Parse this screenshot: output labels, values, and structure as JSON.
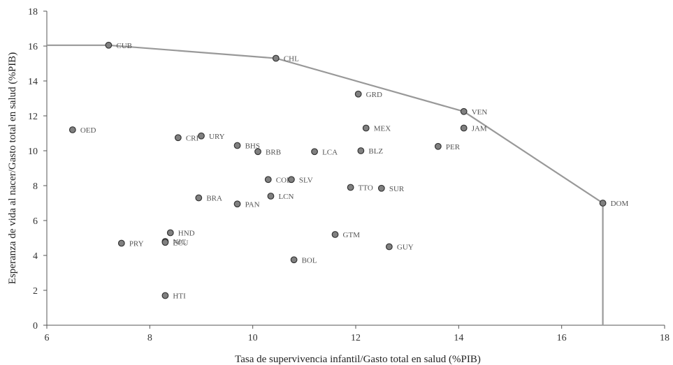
{
  "chart_data": {
    "type": "scatter",
    "title": "",
    "xlabel": "Tasa de supervivencia infantil/Gasto total en salud (%PIB)",
    "ylabel": "Esperanza de vida al nacer/Gasto total en salud (%PIB)",
    "xlim": [
      6,
      18
    ],
    "ylim": [
      0,
      18
    ],
    "xticks": [
      6,
      8,
      10,
      12,
      14,
      16,
      18
    ],
    "yticks": [
      0,
      2,
      4,
      6,
      8,
      10,
      12,
      14,
      16,
      18
    ],
    "grid": false,
    "colors": {
      "point": "#808080",
      "point_edge": "#333333",
      "frontier": "#999999"
    },
    "points": [
      {
        "label": "CUB",
        "x": 7.2,
        "y": 16.05
      },
      {
        "label": "CHL",
        "x": 10.45,
        "y": 15.3
      },
      {
        "label": "GRD",
        "x": 12.05,
        "y": 13.25
      },
      {
        "label": "VEN",
        "x": 14.1,
        "y": 12.25
      },
      {
        "label": "JAM",
        "x": 14.1,
        "y": 11.3
      },
      {
        "label": "MEX",
        "x": 12.2,
        "y": 11.3
      },
      {
        "label": "OED",
        "x": 6.5,
        "y": 11.2
      },
      {
        "label": "CRI",
        "x": 8.55,
        "y": 10.75
      },
      {
        "label": "URY",
        "x": 9.0,
        "y": 10.85
      },
      {
        "label": "BHS",
        "x": 9.7,
        "y": 10.3
      },
      {
        "label": "BRB",
        "x": 10.1,
        "y": 9.95
      },
      {
        "label": "LCA",
        "x": 11.2,
        "y": 9.95
      },
      {
        "label": "BLZ",
        "x": 12.1,
        "y": 10.0
      },
      {
        "label": "PER",
        "x": 13.6,
        "y": 10.25
      },
      {
        "label": "COL",
        "x": 10.3,
        "y": 8.35
      },
      {
        "label": "SLV",
        "x": 10.75,
        "y": 8.35
      },
      {
        "label": "TTO",
        "x": 11.9,
        "y": 7.9
      },
      {
        "label": "SUR",
        "x": 12.5,
        "y": 7.85
      },
      {
        "label": "BRA",
        "x": 8.95,
        "y": 7.3
      },
      {
        "label": "PAN",
        "x": 9.7,
        "y": 6.95
      },
      {
        "label": "LCN",
        "x": 10.35,
        "y": 7.4
      },
      {
        "label": "DOM",
        "x": 16.8,
        "y": 7.0
      },
      {
        "label": "HND",
        "x": 8.4,
        "y": 5.3
      },
      {
        "label": "NIC",
        "x": 8.3,
        "y": 4.8
      },
      {
        "label": "ECU",
        "x": 8.3,
        "y": 4.75
      },
      {
        "label": "PRY",
        "x": 7.45,
        "y": 4.7
      },
      {
        "label": "GTM",
        "x": 11.6,
        "y": 5.2
      },
      {
        "label": "GUY",
        "x": 12.65,
        "y": 4.5
      },
      {
        "label": "BOL",
        "x": 10.8,
        "y": 3.75
      },
      {
        "label": "HTI",
        "x": 8.3,
        "y": 1.7
      }
    ],
    "frontier": [
      {
        "x": 6.0,
        "y": 16.05
      },
      {
        "x": 7.2,
        "y": 16.05
      },
      {
        "x": 10.45,
        "y": 15.3
      },
      {
        "x": 14.1,
        "y": 12.25
      },
      {
        "x": 16.8,
        "y": 7.0
      },
      {
        "x": 16.8,
        "y": 0
      }
    ]
  }
}
